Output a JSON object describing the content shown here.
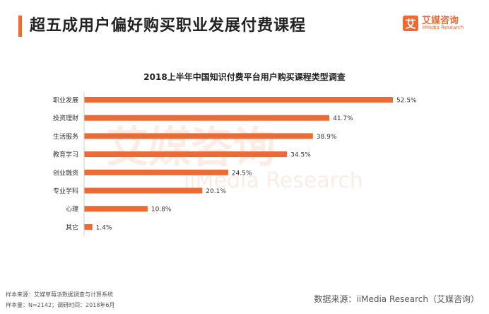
{
  "header": {
    "title": "超五成用户偏好购买职业发展付费课程",
    "logo_mark": "艾",
    "logo_cn": "艾媒咨询",
    "logo_en": "iiMedia Research"
  },
  "watermark": {
    "cn": "艾媒咨询",
    "en": "iiMedia Research"
  },
  "chart_data": {
    "type": "bar",
    "orientation": "horizontal",
    "title": "2018上半年中国知识付费平台用户购买课程类型调查",
    "categories": [
      "职业发展",
      "投资理财",
      "生活服务",
      "教育学习",
      "创业融资",
      "专业学科",
      "心理",
      "其它"
    ],
    "values": [
      52.5,
      41.7,
      38.9,
      34.5,
      24.5,
      20.1,
      10.8,
      1.4
    ],
    "labels": [
      "52.5%",
      "41.7%",
      "38.9%",
      "34.5%",
      "24.5%",
      "20.1%",
      "10.8%",
      "1.4%"
    ],
    "unit": "%",
    "xlim": [
      0,
      52.5
    ],
    "grid": false,
    "bar_color": "#ee6a35"
  },
  "footer": {
    "sample_source": "样本来源：艾媒草莓派数据调查与计算系统",
    "sample_size": "样本量：N=2142；调研时间：2018年6月",
    "data_source": "数据来源：iiMedia Research（艾媒咨询）"
  }
}
